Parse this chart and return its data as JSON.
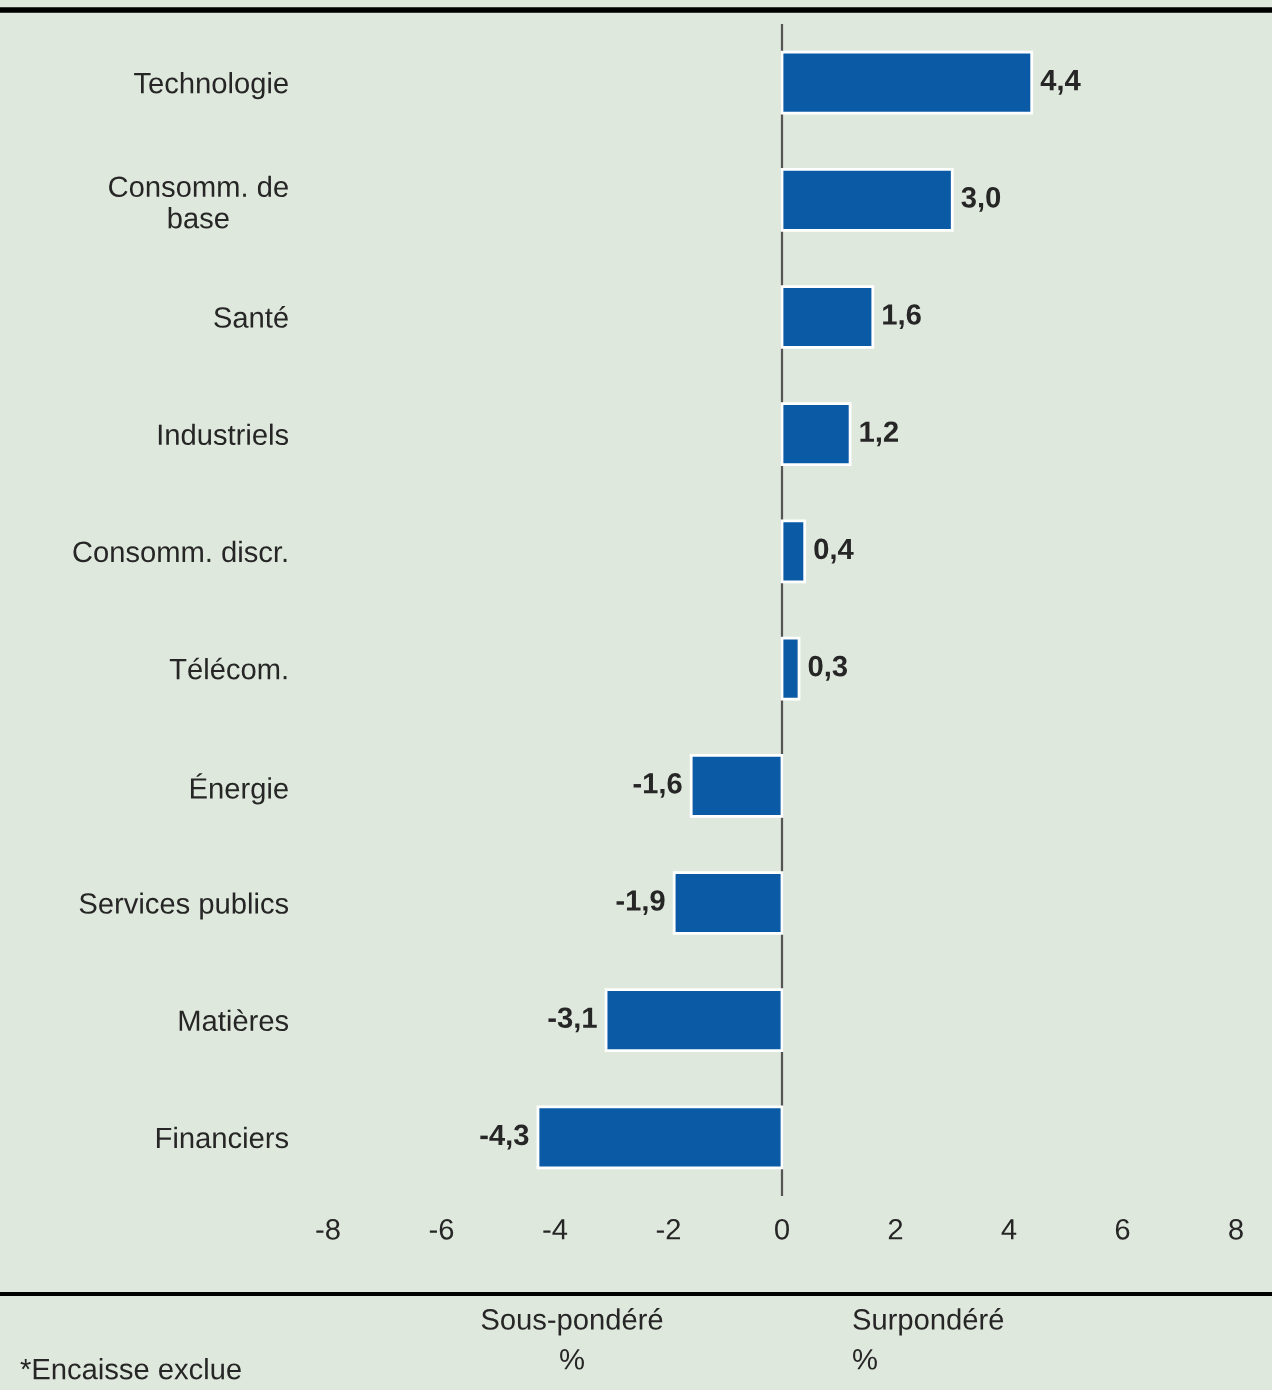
{
  "chart_data": {
    "type": "bar",
    "orientation": "horizontal",
    "categories": [
      "Technologie",
      "Consomm. de\nbase",
      "Santé",
      "Industriels",
      "Consomm. discr.",
      "Télécom.",
      "Énergie",
      "Services publics",
      "Matières",
      "Financiers"
    ],
    "values": [
      4.4,
      3.0,
      1.6,
      1.2,
      0.4,
      0.3,
      -1.6,
      -1.9,
      -3.1,
      -4.3
    ],
    "value_labels": [
      "4,4",
      "3,0",
      "1,6",
      "1,2",
      "0,4",
      "0,3",
      "-1,6",
      "-1,9",
      "-3,1",
      "-4,3"
    ],
    "color": "#0a5aa6",
    "xlim": [
      -8,
      8
    ],
    "xticks": [
      -8,
      -6,
      -4,
      -2,
      0,
      2,
      4,
      6,
      8
    ],
    "grid": false,
    "legend": false,
    "ref_lines": [
      {
        "axis": "x",
        "value": 0,
        "color": "#555555"
      }
    ],
    "annotations": [
      "Sous-pondéré\n%",
      "Surpondéré\n%",
      "*Encaisse exclue"
    ]
  }
}
